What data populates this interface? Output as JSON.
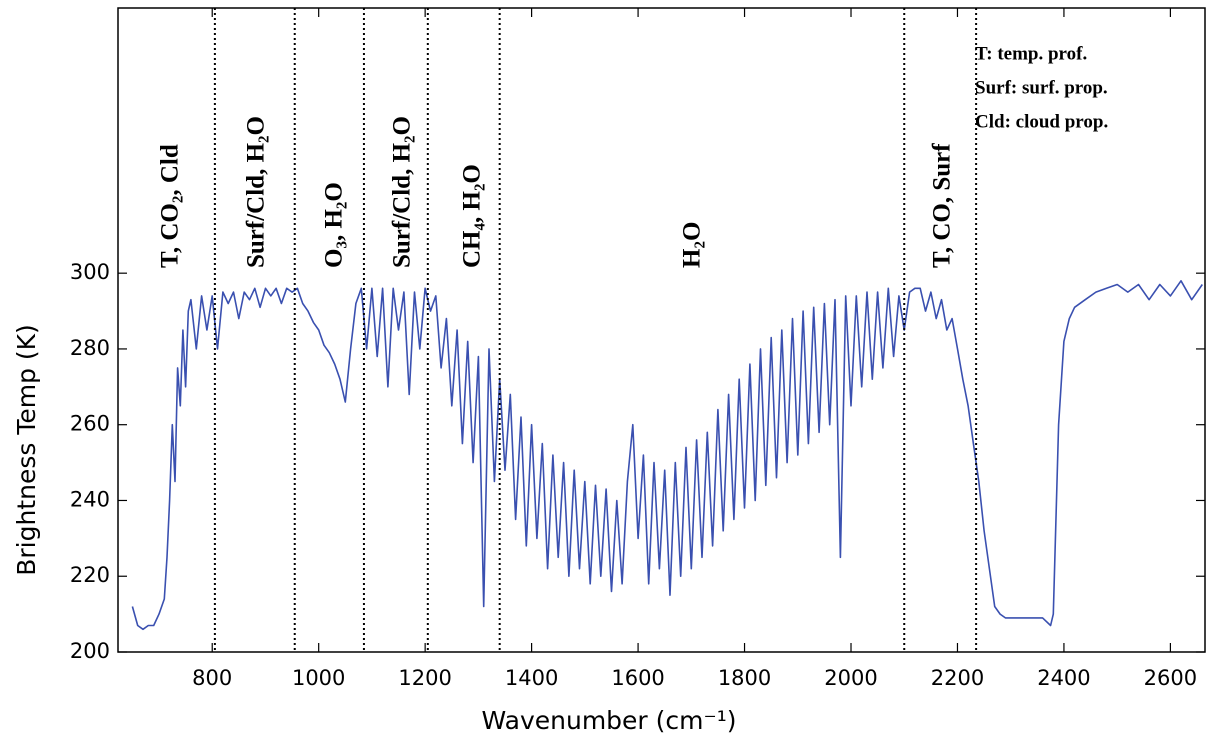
{
  "chart_data": {
    "type": "line",
    "x_label": "Wavenumber (cm⁻¹)",
    "y_label": "Brightness Temp (K)",
    "color": "#3a50b0",
    "xlim": [
      623,
      2665
    ],
    "ylim": [
      200,
      370
    ],
    "xticks": [
      800,
      1000,
      1200,
      1400,
      1600,
      1800,
      2000,
      2200,
      2400,
      2600
    ],
    "yticks": [
      200,
      220,
      240,
      260,
      280,
      300
    ],
    "dividers": [
      805,
      955,
      1085,
      1205,
      1340,
      2100,
      2235
    ],
    "annotations": [
      "T, CO₂, Cld",
      "Surf/Cld, H₂O",
      "O₃, H₂O",
      "Surf/Cld, H₂O",
      "CH₄, H₂O",
      "H₂O",
      "T, CO, Surf"
    ],
    "key": [
      "T: temp. prof.",
      "Surf: surf. prop.",
      "Cld: cloud prop."
    ],
    "x": [
      650,
      660,
      670,
      680,
      690,
      700,
      710,
      715,
      720,
      725,
      730,
      735,
      740,
      745,
      750,
      755,
      760,
      770,
      780,
      790,
      800,
      810,
      820,
      830,
      840,
      850,
      860,
      870,
      880,
      890,
      900,
      910,
      920,
      930,
      940,
      950,
      960,
      970,
      980,
      990,
      1000,
      1010,
      1020,
      1030,
      1040,
      1050,
      1060,
      1070,
      1080,
      1090,
      1100,
      1110,
      1120,
      1130,
      1140,
      1150,
      1160,
      1170,
      1180,
      1190,
      1200,
      1210,
      1220,
      1230,
      1240,
      1250,
      1260,
      1270,
      1280,
      1290,
      1300,
      1310,
      1320,
      1330,
      1340,
      1350,
      1360,
      1370,
      1380,
      1390,
      1400,
      1410,
      1420,
      1430,
      1440,
      1450,
      1460,
      1470,
      1480,
      1490,
      1500,
      1510,
      1520,
      1530,
      1540,
      1550,
      1560,
      1570,
      1580,
      1590,
      1600,
      1610,
      1620,
      1630,
      1640,
      1650,
      1660,
      1670,
      1680,
      1690,
      1700,
      1710,
      1720,
      1730,
      1740,
      1750,
      1760,
      1770,
      1780,
      1790,
      1800,
      1810,
      1820,
      1830,
      1840,
      1850,
      1860,
      1870,
      1880,
      1890,
      1900,
      1910,
      1920,
      1930,
      1940,
      1950,
      1960,
      1970,
      1980,
      1990,
      2000,
      2010,
      2020,
      2030,
      2040,
      2050,
      2060,
      2070,
      2080,
      2090,
      2100,
      2110,
      2120,
      2130,
      2140,
      2150,
      2160,
      2170,
      2180,
      2190,
      2200,
      2210,
      2220,
      2230,
      2240,
      2250,
      2260,
      2270,
      2280,
      2290,
      2300,
      2320,
      2340,
      2360,
      2375,
      2380,
      2390,
      2400,
      2410,
      2420,
      2440,
      2460,
      2480,
      2500,
      2520,
      2540,
      2560,
      2580,
      2600,
      2620,
      2640,
      2660
    ],
    "values": [
      212,
      207,
      206,
      207,
      207,
      210,
      214,
      225,
      240,
      260,
      245,
      275,
      265,
      285,
      270,
      290,
      293,
      280,
      294,
      285,
      294,
      280,
      295,
      292,
      295,
      288,
      295,
      293,
      296,
      291,
      296,
      294,
      296,
      292,
      296,
      295,
      296,
      292,
      290,
      287,
      285,
      281,
      279,
      276,
      272,
      266,
      280,
      292,
      296,
      280,
      296,
      278,
      296,
      270,
      296,
      285,
      295,
      268,
      295,
      280,
      296,
      290,
      294,
      275,
      288,
      265,
      285,
      255,
      282,
      250,
      278,
      212,
      280,
      245,
      272,
      248,
      268,
      235,
      262,
      228,
      260,
      230,
      255,
      222,
      252,
      225,
      250,
      220,
      248,
      222,
      245,
      218,
      244,
      220,
      243,
      216,
      240,
      218,
      245,
      260,
      230,
      252,
      218,
      250,
      222,
      248,
      215,
      250,
      220,
      254,
      222,
      256,
      225,
      258,
      228,
      264,
      232,
      268,
      235,
      272,
      238,
      276,
      240,
      280,
      244,
      283,
      246,
      285,
      250,
      288,
      252,
      290,
      255,
      291,
      258,
      292,
      260,
      293,
      225,
      294,
      265,
      294,
      270,
      295,
      272,
      295,
      275,
      296,
      278,
      294,
      285,
      295,
      296,
      296,
      290,
      295,
      288,
      293,
      285,
      288,
      280,
      272,
      265,
      255,
      245,
      232,
      222,
      212,
      210,
      209,
      209,
      209,
      209,
      209,
      207,
      210,
      260,
      282,
      288,
      291,
      293,
      295,
      296,
      297,
      295,
      297,
      293,
      297,
      294,
      298,
      293,
      297
    ]
  }
}
